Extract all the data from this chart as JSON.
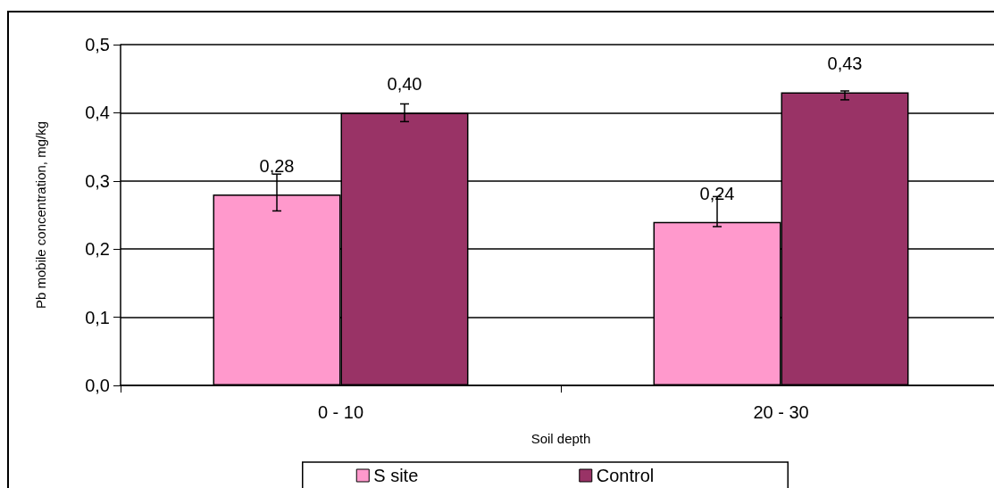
{
  "chart_data": {
    "type": "bar",
    "xlabel": "Soil depth",
    "ylabel": "Pb mobile concentration, mg/kg",
    "categories": [
      "0 - 10",
      "20 - 30"
    ],
    "series": [
      {
        "name": "S site",
        "color": "#ff99cc",
        "values": [
          0.28,
          0.24
        ],
        "value_labels": [
          "0,28",
          "0,24"
        ],
        "errors": [
          [
            0.256,
            0.31
          ],
          [
            0.233,
            0.277
          ]
        ]
      },
      {
        "name": "Control",
        "color": "#993366",
        "values": [
          0.4,
          0.43
        ],
        "value_labels": [
          "0,40",
          "0,43"
        ],
        "errors": [
          [
            0.387,
            0.413
          ],
          [
            0.419,
            0.432
          ]
        ]
      }
    ],
    "ylim": [
      0,
      0.5
    ],
    "yticks": [
      {
        "value": 0,
        "label": "0,0"
      },
      {
        "value": 0.1,
        "label": "0,1"
      },
      {
        "value": 0.2,
        "label": "0,2"
      },
      {
        "value": 0.3,
        "label": "0,3"
      },
      {
        "value": 0.4,
        "label": "0,4"
      },
      {
        "value": 0.5,
        "label": "0,5"
      }
    ],
    "grid": "y",
    "legend": "bottom"
  }
}
